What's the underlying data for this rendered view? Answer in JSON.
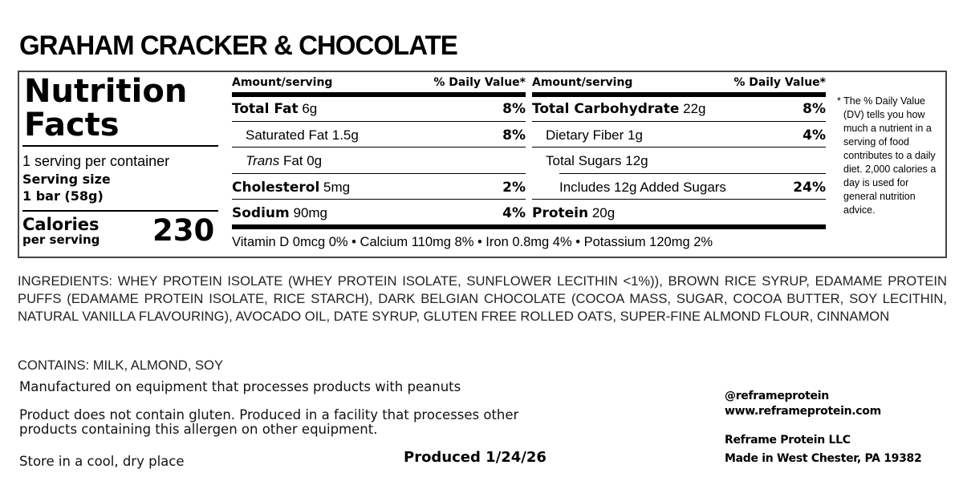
{
  "product_title": "GRAHAM CRACKER & CHOCOLATE",
  "nutrition": {
    "heading_line1": "Nutrition",
    "heading_line2": "Facts",
    "servings_per_container": "1 serving per container",
    "serving_size_label": "Serving size",
    "serving_size_value": "1 bar (58g)",
    "calories_label": "Calories",
    "calories_sub": "per serving",
    "calories_value": "230",
    "col_header_amount": "Amount/serving",
    "col_header_dv": "% Daily Value*",
    "left_rows": [
      {
        "name": "Total Fat",
        "amount": "6g",
        "dv": "8%"
      },
      {
        "name": "Saturated Fat",
        "amount": "1.5g",
        "dv": "8%"
      },
      {
        "name": "Trans",
        "amount": "Fat 0g",
        "dv": ""
      },
      {
        "name": "Cholesterol",
        "amount": "5mg",
        "dv": "2%"
      },
      {
        "name": "Sodium",
        "amount": "90mg",
        "dv": "4%"
      }
    ],
    "right_rows": [
      {
        "name": "Total Carbohydrate",
        "amount": "22g",
        "dv": "8%"
      },
      {
        "name": "Dietary Fiber",
        "amount": "1g",
        "dv": "4%"
      },
      {
        "name": "Total Sugars",
        "amount": "12g",
        "dv": ""
      },
      {
        "name": "Includes 12g Added Sugars",
        "amount": "",
        "dv": "24%"
      },
      {
        "name": "Protein",
        "amount": "20g",
        "dv": ""
      }
    ],
    "vitamins": "Vitamin D 0mcg 0% • Calcium 110mg 8% • Iron 0.8mg 4% • Potassium 120mg 2%",
    "footnote": "* The % Daily Value (DV) tells you how much a nutrient in a serving of food contributes to a daily diet. 2,000 calories a day is used for general nutrition advice."
  },
  "ingredients": "INGREDIENTS: WHEY PROTEIN ISOLATE (WHEY PROTEIN ISOLATE, SUNFLOWER LECITHIN <1%)), BROWN RICE SYRUP, EDAMAME PROTEIN PUFFS (EDAMAME PROTEIN ISOLATE, RICE STARCH), DARK BELGIAN CHOCOLATE (COCOA MASS, SUGAR, COCOA BUTTER, SOY LECITHIN, NATURAL VANILLA FLAVOURING), AVOCADO OIL, DATE SYRUP, GLUTEN FREE ROLLED OATS, SUPER-FINE ALMOND FLOUR, CINNAMON",
  "contains": "CONTAINS: MILK, ALMOND, SOY",
  "notes": {
    "peanuts": "Manufactured on equipment that processes products with peanuts",
    "gluten_line1": "Product does not contain gluten. Produced in a facility that processes other",
    "gluten_line2": "products containing this allergen on other equipment.",
    "storage": "Store in a cool, dry place",
    "produced": "Produced 1/24/26"
  },
  "brand": {
    "handle": "@reframeprotein",
    "website": "www.reframeprotein.com",
    "company": "Reframe Protein LLC",
    "location": "Made in West Chester, PA 19382"
  }
}
